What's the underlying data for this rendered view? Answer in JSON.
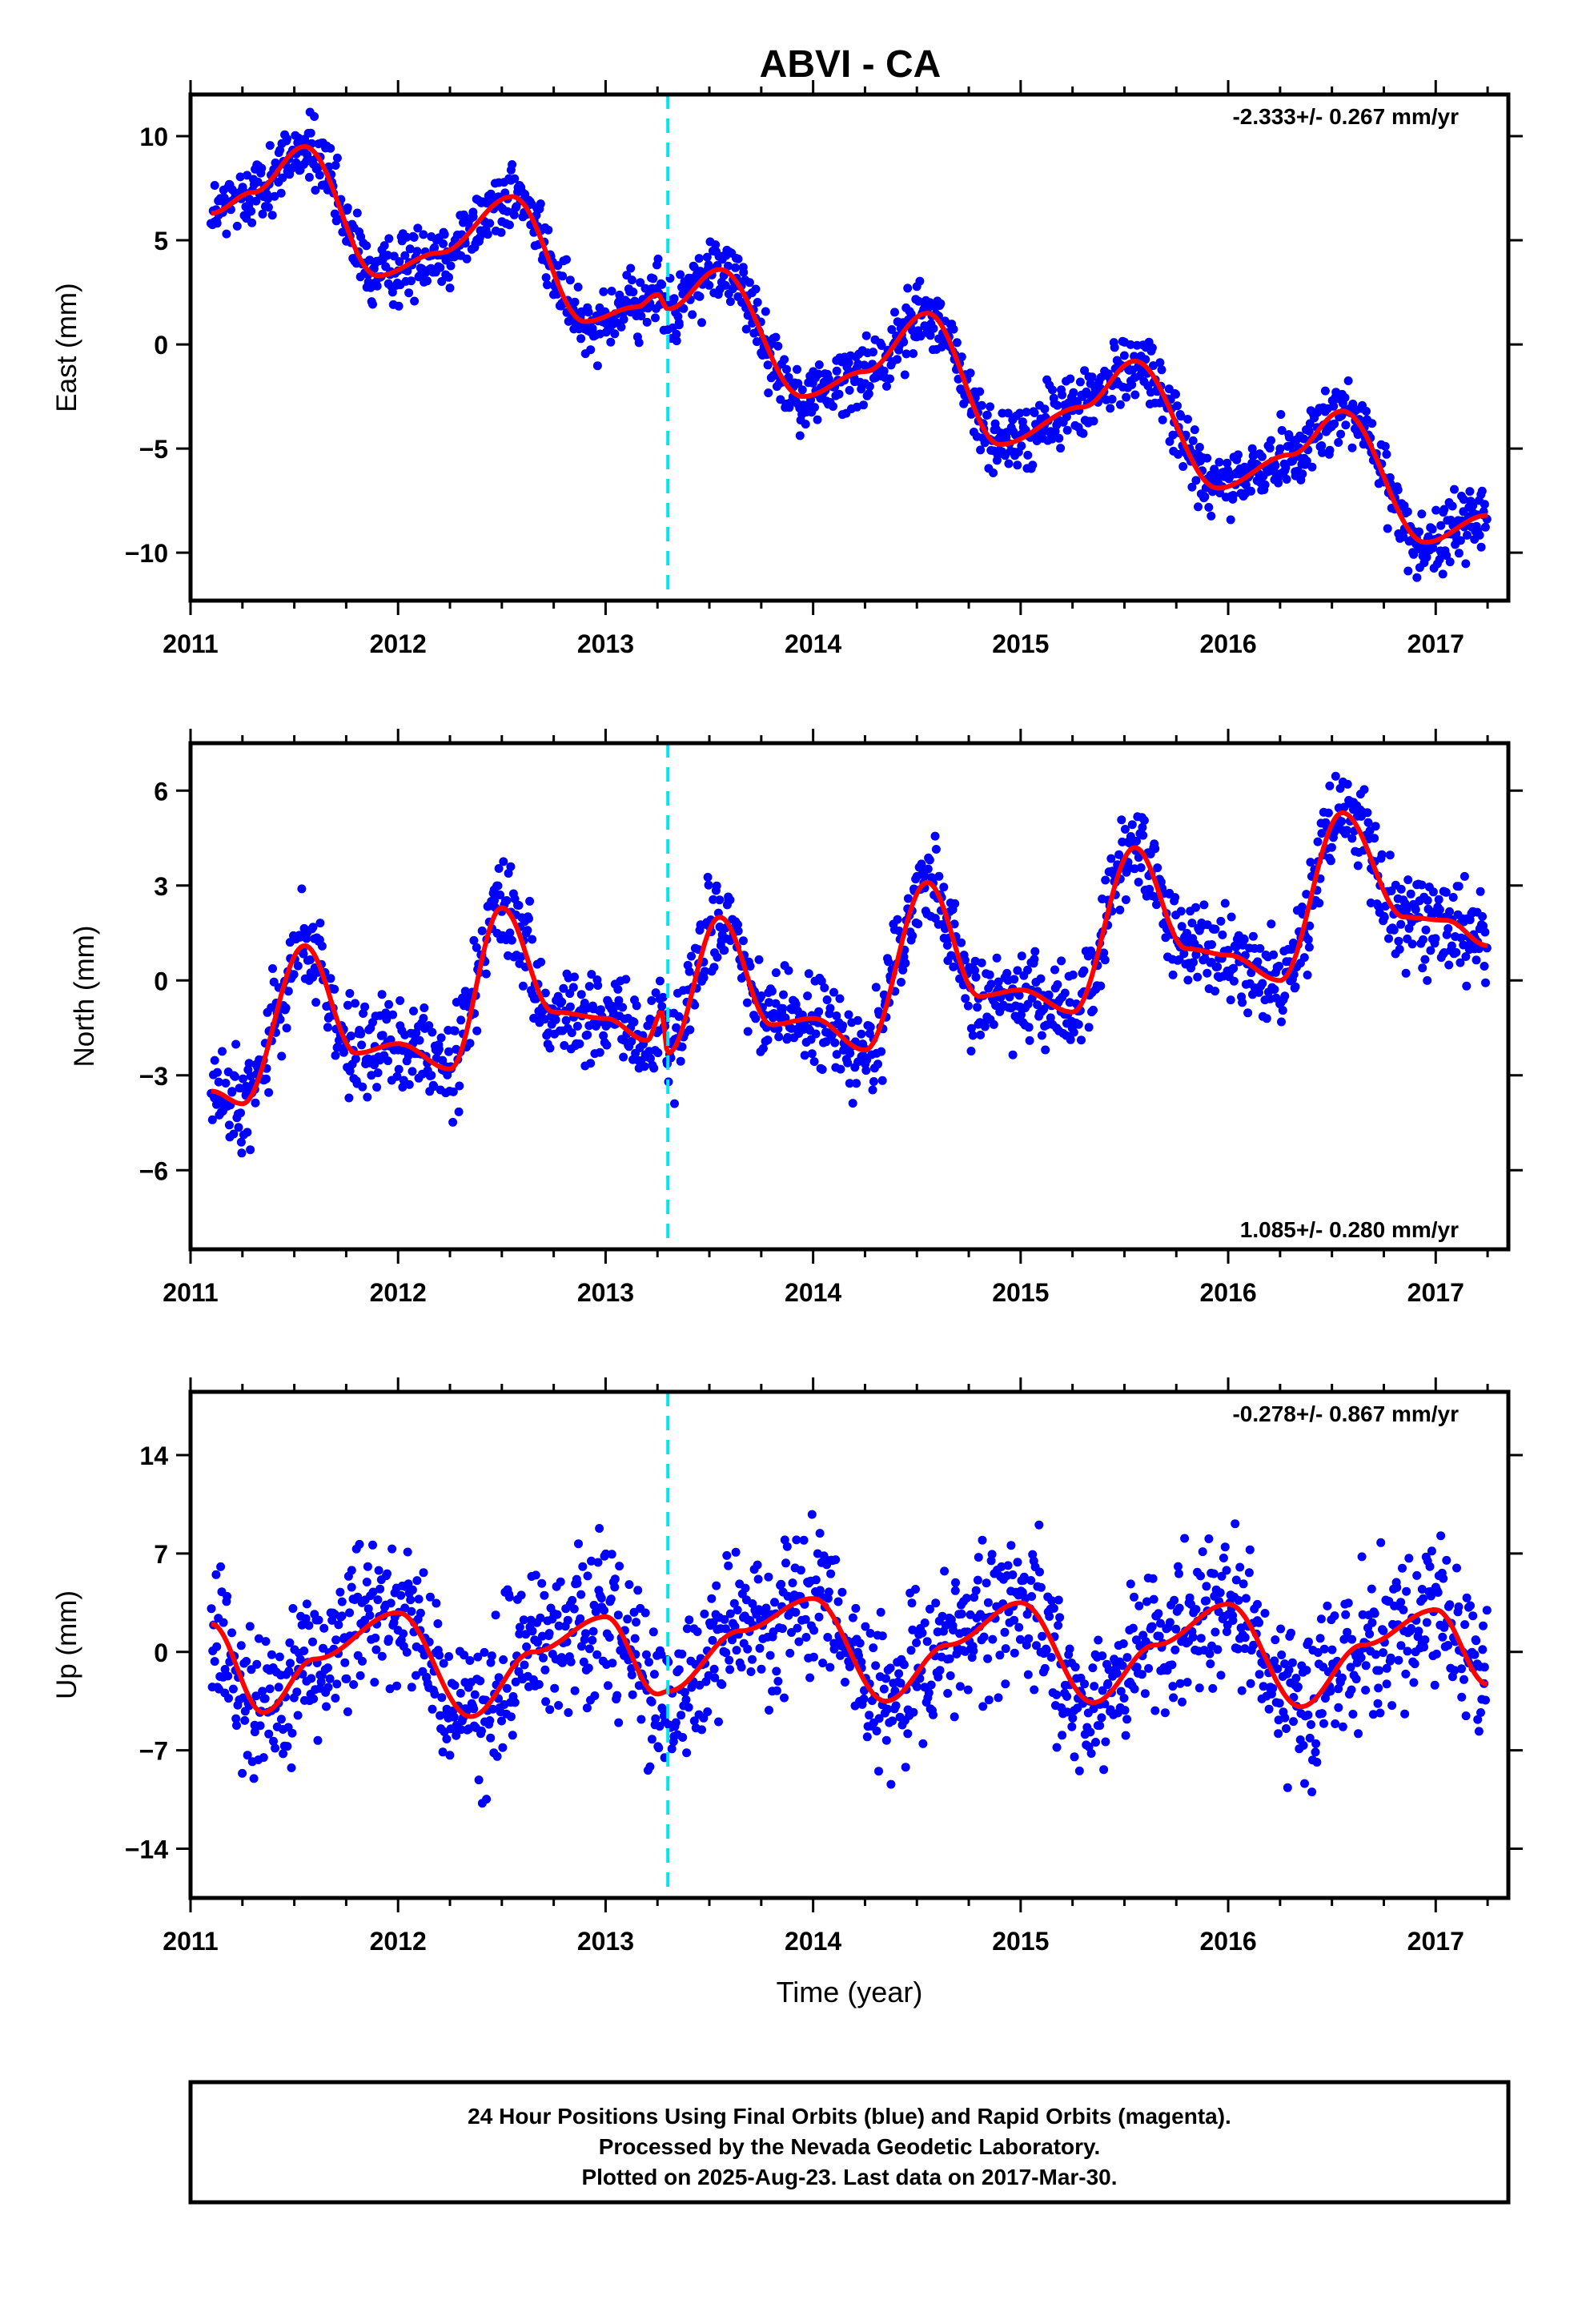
{
  "title": "ABVI - CA",
  "footer": {
    "lines": [
      "24 Hour Positions Using Final Orbits (blue) and Rapid Orbits (magenta).",
      "Processed by the Nevada Geodetic Laboratory.",
      "Plotted on 2025-Aug-23. Last data on 2017-Mar-30."
    ]
  },
  "colors": {
    "points": "#0000ff",
    "model": "#ff0000",
    "event": "#00e5ee",
    "frame": "#000000"
  },
  "chart_data": [
    {
      "type": "scatter",
      "ylabel": "East (mm)",
      "xlabel": "",
      "rate_label": "-2.333+/- 0.267 mm/yr",
      "xlim": [
        2011.0,
        2017.35
      ],
      "ylim": [
        -12.3,
        12.0
      ],
      "xticks": [
        2011,
        2012,
        2013,
        2014,
        2015,
        2016,
        2017
      ],
      "yticks": [
        10,
        5,
        0,
        -5,
        -10
      ],
      "ytick_labels": [
        "10",
        "5",
        "0",
        "−5",
        "−10"
      ],
      "event_x": 2013.3,
      "scatter_spread": 1.4,
      "model_series": {
        "x": [
          2011.1,
          2011.3,
          2011.55,
          2011.9,
          2012.2,
          2012.55,
          2012.9,
          2013.15,
          2013.25,
          2013.3,
          2013.55,
          2013.95,
          2014.25,
          2014.55,
          2014.9,
          2015.3,
          2015.55,
          2015.95,
          2016.3,
          2016.55,
          2016.95,
          2017.25
        ],
        "y": [
          6.3,
          7.3,
          9.5,
          3.3,
          4.4,
          7.1,
          1.1,
          1.8,
          2.4,
          1.7,
          3.6,
          -2.5,
          -1.3,
          1.5,
          -4.8,
          -3.0,
          -0.8,
          -6.9,
          -5.3,
          -3.2,
          -9.5,
          -8.2
        ]
      }
    },
    {
      "type": "scatter",
      "ylabel": "North (mm)",
      "xlabel": "",
      "rate_label": "1.085+/- 0.280 mm/yr",
      "xlim": [
        2011.0,
        2017.35
      ],
      "ylim": [
        -8.5,
        7.5
      ],
      "xticks": [
        2011,
        2012,
        2013,
        2014,
        2015,
        2016,
        2017
      ],
      "yticks": [
        6,
        3,
        0,
        -3,
        -6
      ],
      "ytick_labels": [
        "6",
        "3",
        "0",
        "−3",
        "−6"
      ],
      "event_x": 2013.3,
      "scatter_spread": 1.3,
      "model_series": {
        "x": [
          2011.1,
          2011.25,
          2011.55,
          2011.8,
          2012.0,
          2012.25,
          2012.5,
          2012.75,
          2013.0,
          2013.2,
          2013.27,
          2013.3,
          2013.55,
          2013.8,
          2014.0,
          2014.25,
          2014.55,
          2014.8,
          2015.0,
          2015.25,
          2015.55,
          2015.8,
          2016.0,
          2016.25,
          2016.55,
          2016.85,
          2017.05,
          2017.25
        ],
        "y": [
          -3.5,
          -3.9,
          1.1,
          -2.3,
          -2.0,
          -2.8,
          2.3,
          -1.0,
          -1.2,
          -1.9,
          -1.0,
          -2.3,
          2.0,
          -1.4,
          -1.2,
          -2.2,
          3.1,
          -0.5,
          -0.3,
          -1.0,
          4.2,
          1.0,
          0.8,
          0.0,
          5.3,
          2.0,
          1.9,
          1.1
        ]
      }
    },
    {
      "type": "scatter",
      "ylabel": "Up (mm)",
      "xlabel": "Time (year)",
      "rate_label": "-0.278+/- 0.867 mm/yr",
      "xlim": [
        2011.0,
        2017.35
      ],
      "ylim": [
        -17.5,
        18.5
      ],
      "xticks": [
        2011,
        2012,
        2013,
        2014,
        2015,
        2016,
        2017
      ],
      "yticks": [
        14,
        7,
        0,
        -7,
        -14
      ],
      "ytick_labels": [
        "14",
        "7",
        "0",
        "−7",
        "−14"
      ],
      "event_x": 2013.3,
      "scatter_spread": 4.5,
      "model_series": {
        "x": [
          2011.1,
          2011.35,
          2011.6,
          2012.0,
          2012.35,
          2012.65,
          2013.0,
          2013.25,
          2013.3,
          2013.65,
          2014.0,
          2014.35,
          2014.65,
          2015.0,
          2015.35,
          2015.65,
          2016.0,
          2016.35,
          2016.65,
          2017.0,
          2017.25
        ],
        "y": [
          2.0,
          -4.3,
          -0.5,
          2.8,
          -4.6,
          0.0,
          2.5,
          -3.0,
          -2.8,
          1.5,
          3.8,
          -3.5,
          0.5,
          3.5,
          -3.6,
          0.5,
          3.4,
          -3.9,
          0.5,
          3.0,
          -2.3
        ]
      }
    }
  ]
}
